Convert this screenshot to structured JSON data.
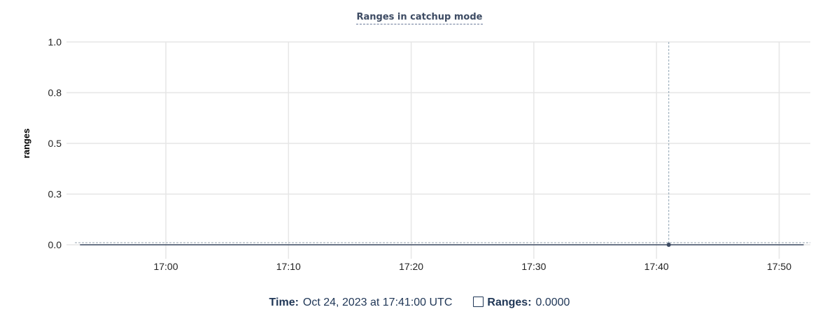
{
  "chart_data": {
    "type": "line",
    "title": "Ranges in catchup mode",
    "ylabel": "ranges",
    "xlabel": "",
    "ylim": [
      0,
      1
    ],
    "yticks": [
      0,
      0.25,
      0.5,
      0.75,
      1.0
    ],
    "ytick_labels": [
      "0.0",
      "0.3",
      "0.5",
      "0.8",
      "1.0"
    ],
    "xlim": [
      "16:52",
      "17:53"
    ],
    "xticks": [
      "17:00",
      "17:10",
      "17:20",
      "17:30",
      "17:40",
      "17:50"
    ],
    "grid": true,
    "series": [
      {
        "name": "Ranges",
        "color": "#3d4b63",
        "x": [
          "16:53",
          "17:00",
          "17:10",
          "17:20",
          "17:30",
          "17:40",
          "17:41",
          "17:50",
          "17:52"
        ],
        "values": [
          0,
          0,
          0,
          0,
          0,
          0,
          0,
          0,
          0
        ]
      }
    ],
    "hover": {
      "x": "17:41",
      "value": 0
    }
  },
  "legend": {
    "time_label": "Time:",
    "time_value": "Oct 24, 2023 at 17:41:00 UTC",
    "series_label": "Ranges:",
    "series_value": "0.0000"
  }
}
